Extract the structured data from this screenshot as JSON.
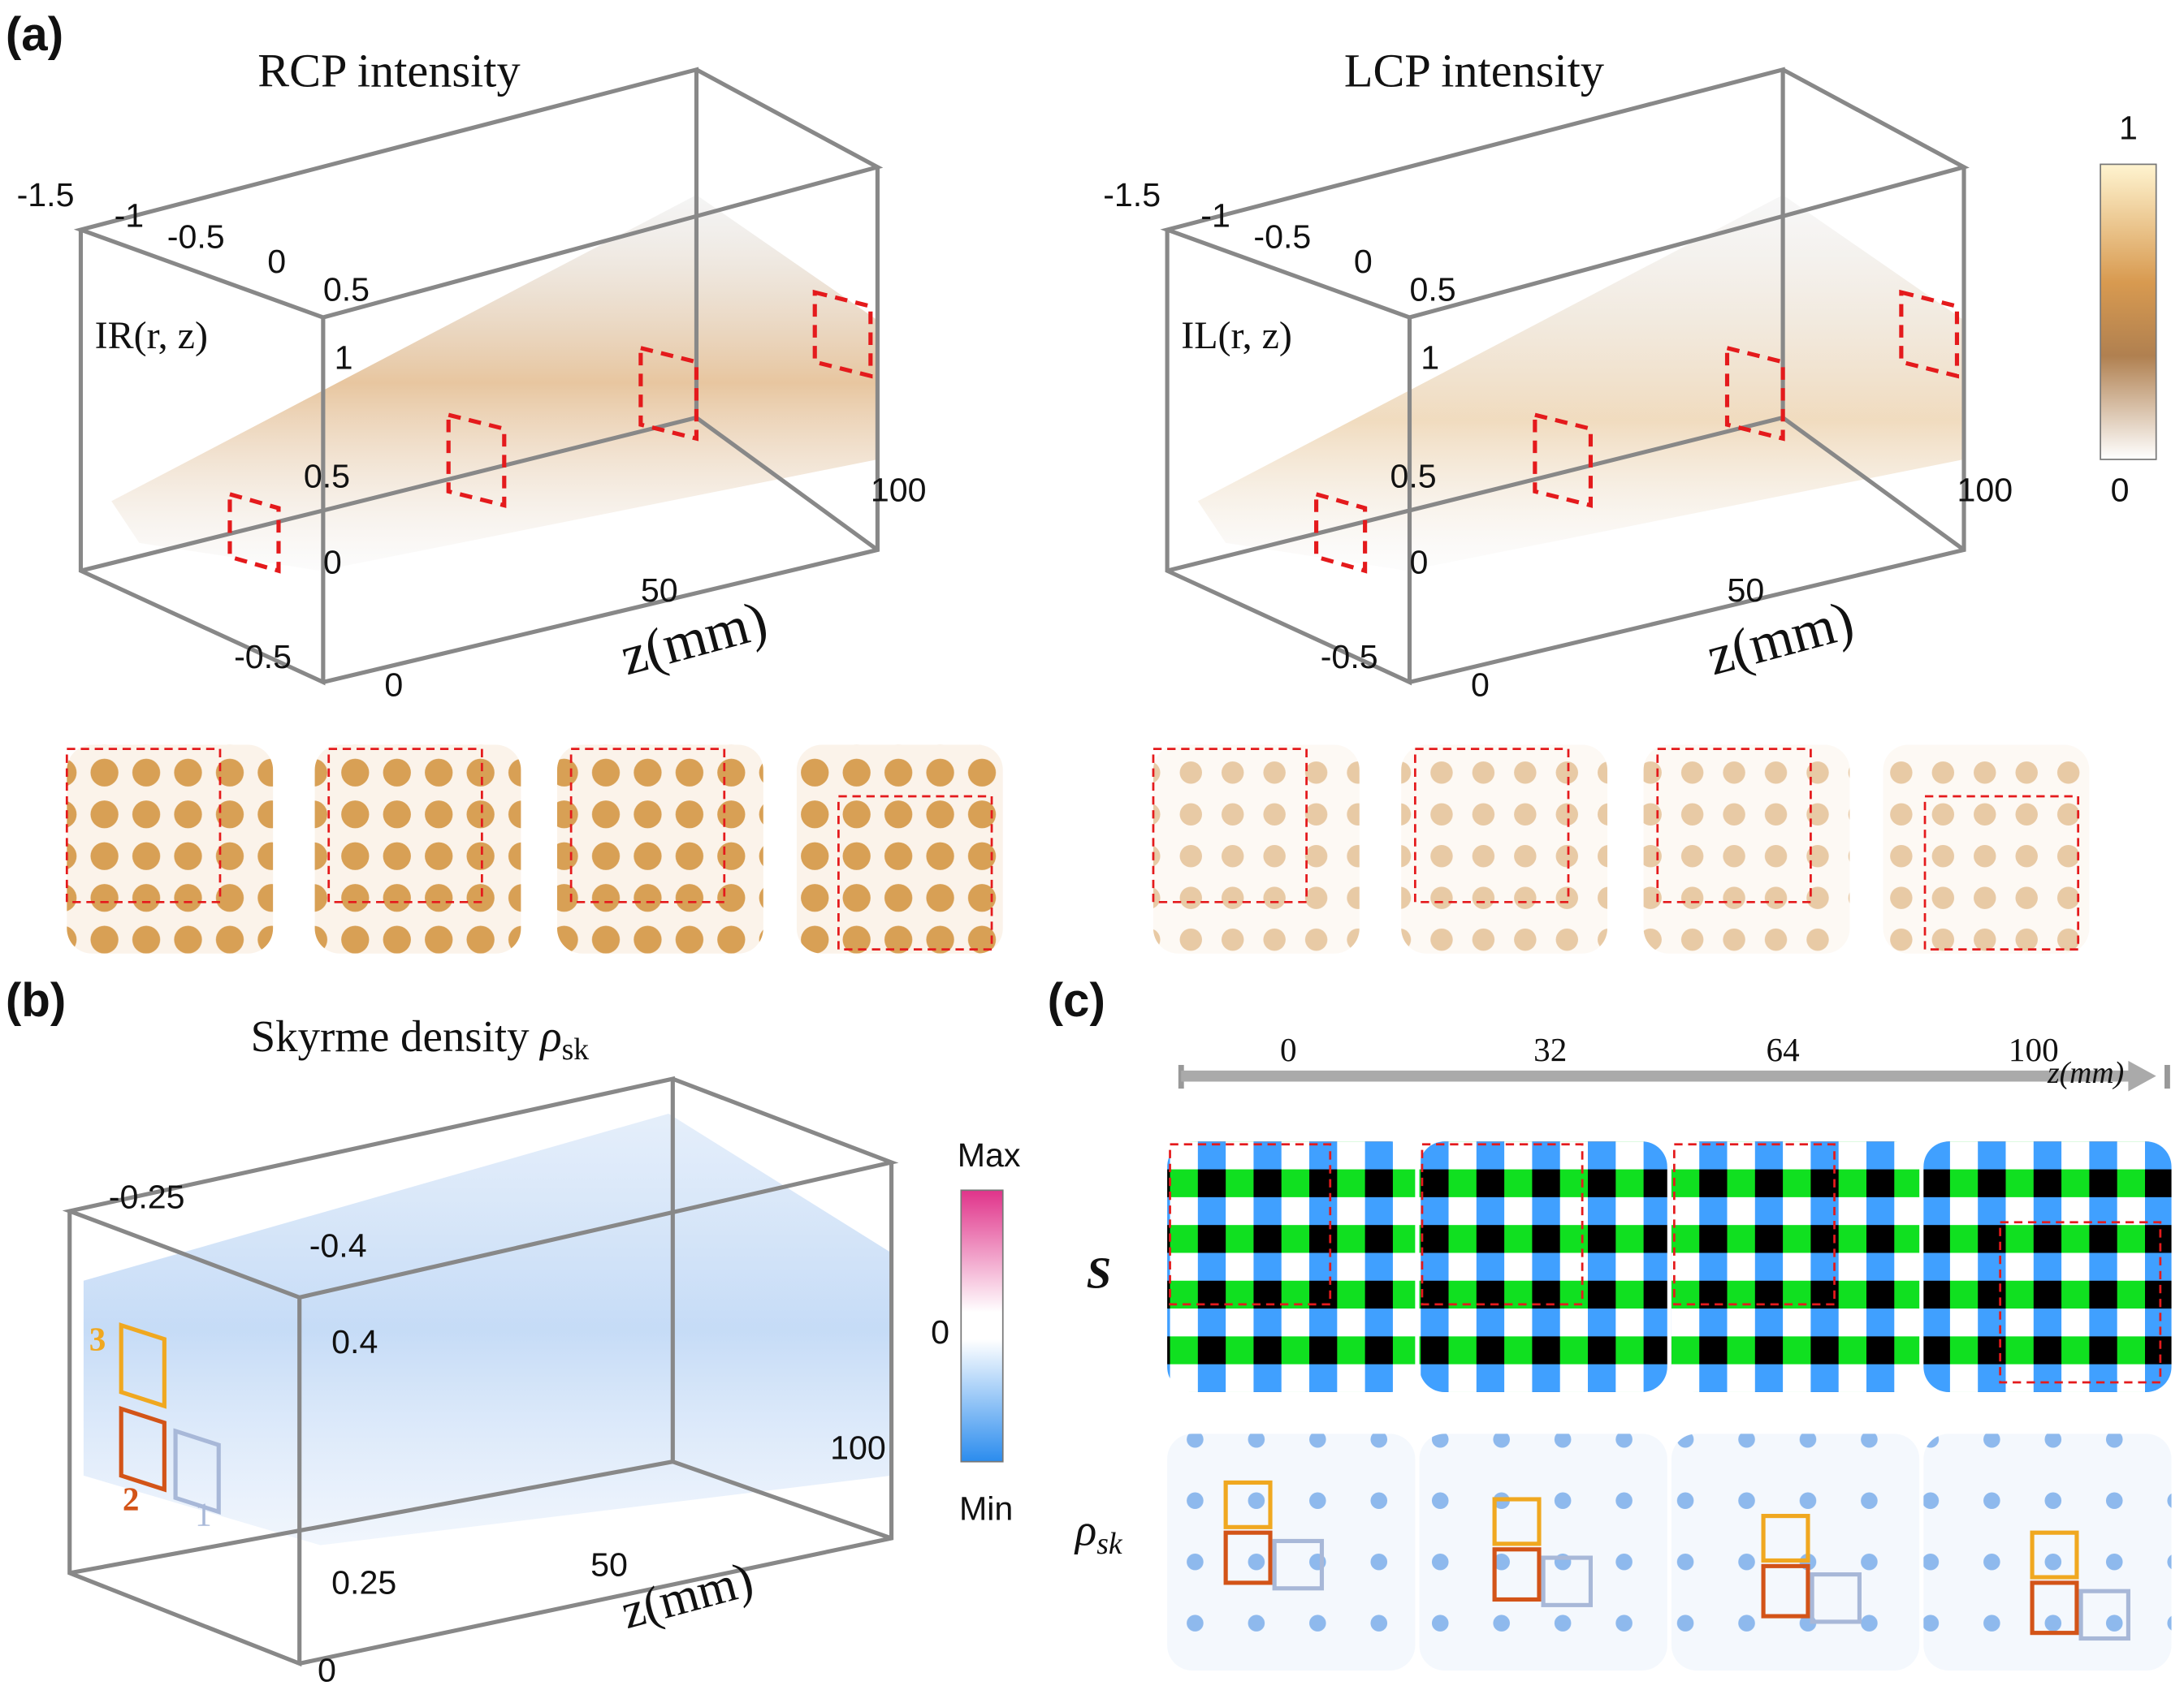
{
  "panel_a": {
    "label": "(a)",
    "plots": [
      {
        "title": "RCP intensity",
        "quantity": "IR(r, z)",
        "x_ticks": [
          "-1.5",
          "-1",
          "-0.5",
          "0",
          "0.5"
        ],
        "y_ticks": [
          "1",
          "0.5",
          "0",
          "-0.5"
        ],
        "z_ticks": [
          "0",
          "50",
          "100"
        ],
        "axis_label": "z(mm)"
      },
      {
        "title": "LCP intensity",
        "quantity": "IL(r, z)",
        "x_ticks": [
          "-1.5",
          "-1",
          "-0.5",
          "0",
          "0.5"
        ],
        "y_ticks": [
          "1",
          "0.5",
          "0",
          "-0.5"
        ],
        "z_ticks": [
          "0",
          "50",
          "100"
        ],
        "axis_label": "z(mm)"
      }
    ],
    "colorbar": {
      "max": "1",
      "min": "0"
    }
  },
  "panel_b": {
    "label": "(b)",
    "title": "Skyrme density ",
    "symbol": "ρ",
    "subscript": "sk",
    "x_ticks": [
      "-0.25",
      "-0.4"
    ],
    "y_ticks": [
      "0.4",
      "0.25",
      "0"
    ],
    "z_ticks": [
      "50",
      "100"
    ],
    "axis_label": "z(mm)",
    "box_labels": [
      "3",
      "2",
      "1"
    ],
    "colorbar": {
      "max": "Max",
      "mid": "0",
      "min": "Min"
    }
  },
  "panel_c": {
    "label": "(c)",
    "z_positions": [
      "0",
      "32",
      "64",
      "100"
    ],
    "axis_label": "z(mm)",
    "row_s": "S",
    "row_rho": "ρ",
    "row_rho_sub": "sk"
  }
}
